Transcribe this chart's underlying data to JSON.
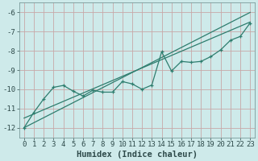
{
  "xlabel": "Humidex (Indice chaleur)",
  "bg_color": "#ceeaea",
  "line_color": "#2e7d6e",
  "grid_color": "#c8a8a8",
  "xlim": [
    -0.5,
    23.5
  ],
  "ylim": [
    -12.5,
    -5.5
  ],
  "yticks": [
    -12,
    -11,
    -10,
    -9,
    -8,
    -7,
    -6
  ],
  "xticks": [
    0,
    1,
    2,
    3,
    4,
    5,
    6,
    7,
    8,
    9,
    10,
    11,
    12,
    13,
    14,
    15,
    16,
    17,
    18,
    19,
    20,
    21,
    22,
    23
  ],
  "series1_x": [
    0,
    1,
    2,
    3,
    4,
    5,
    6,
    7,
    8,
    9,
    10,
    11,
    12,
    13,
    14,
    15,
    16,
    17,
    18,
    19,
    20,
    21,
    22,
    23
  ],
  "series1_y": [
    -12.0,
    -11.2,
    -10.5,
    -9.9,
    -9.8,
    -10.1,
    -10.35,
    -10.05,
    -10.15,
    -10.15,
    -9.6,
    -9.72,
    -10.0,
    -9.78,
    -8.05,
    -9.05,
    -8.55,
    -8.6,
    -8.55,
    -8.3,
    -7.95,
    -7.45,
    -7.25,
    -6.55
  ],
  "series2_x": [
    0,
    23
  ],
  "series2_y": [
    -12.0,
    -6.0
  ],
  "series3_x": [
    0,
    23
  ],
  "series3_y": [
    -11.5,
    -6.5
  ],
  "tick_fontsize": 6.5,
  "xlabel_fontsize": 7.5,
  "tick_color": "#2e4a4a"
}
